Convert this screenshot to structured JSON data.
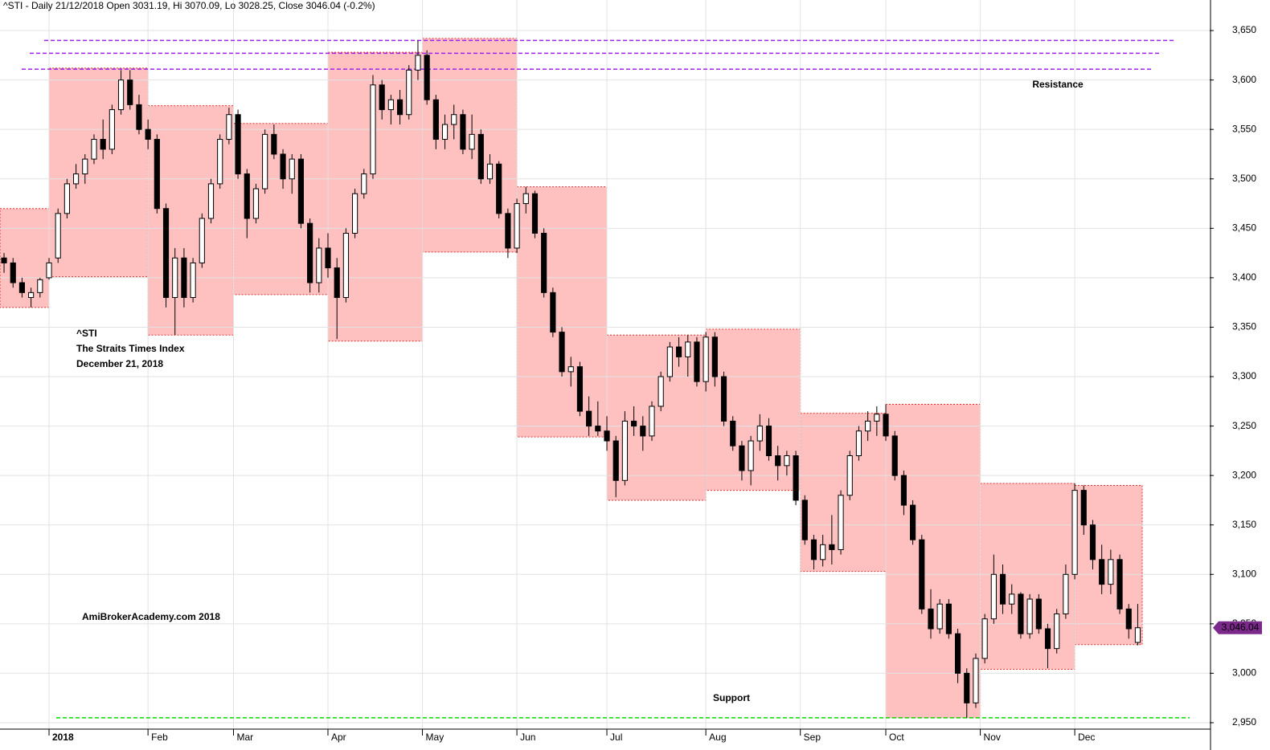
{
  "chart_data": {
    "type": "candlestick",
    "title": "^STI - Daily 21/12/2018 Open 3031.19, Hi 3070.09, Lo 3028.25, Close 3046.04 (-0.2%)",
    "annotations": [
      "Resistance",
      "Support",
      "^STI",
      "The Straits Times Index",
      "December 21, 2018",
      "AmiBrokerAcademy.com  2018"
    ],
    "annotation_color": "#e8403c",
    "up_color": "#ffffff",
    "down_color": "#000000",
    "open": [
      3420,
      3415,
      3395,
      3380,
      3385,
      3400,
      3420,
      3465,
      3495,
      3505,
      3520,
      3540,
      3530,
      3570,
      3600,
      3575,
      3550,
      3540,
      3470,
      3380,
      3420,
      3380,
      3415,
      3460,
      3495,
      3540,
      3565,
      3505,
      3460,
      3490,
      3545,
      3525,
      3500,
      3520,
      3455,
      3395,
      3430,
      3410,
      3380,
      3445,
      3485,
      3505,
      3595,
      3570,
      3580,
      3565,
      3610,
      3625,
      3580,
      3540,
      3555,
      3565,
      3530,
      3545,
      3500,
      3515,
      3465,
      3430,
      3475,
      3485,
      3445,
      3385,
      3345,
      3305,
      3310,
      3265,
      3250,
      3245,
      3235,
      3195,
      3255,
      3250,
      3240,
      3270,
      3300,
      3330,
      3320,
      3335,
      3295,
      3340,
      3300,
      3255,
      3230,
      3205,
      3235,
      3250,
      3220,
      3210,
      3220,
      3175,
      3135,
      3115,
      3130,
      3125,
      3180,
      3220,
      3245,
      3255,
      3262,
      3240,
      3200,
      3170,
      3135,
      3065,
      3045,
      3070,
      3040,
      3000,
      2970,
      3015,
      3055,
      3100,
      3070,
      3080,
      3040,
      3075,
      3045,
      3025,
      3060,
      3100,
      3185,
      3150,
      3115,
      3090,
      3115,
      3065,
      3031.19
    ],
    "high": [
      3425,
      3420,
      3400,
      3390,
      3400,
      3420,
      3470,
      3500,
      3515,
      3525,
      3545,
      3560,
      3575,
      3610,
      3610,
      3585,
      3560,
      3545,
      3475,
      3430,
      3430,
      3420,
      3465,
      3500,
      3545,
      3572,
      3570,
      3510,
      3495,
      3550,
      3555,
      3530,
      3525,
      3525,
      3460,
      3440,
      3445,
      3420,
      3450,
      3490,
      3510,
      3605,
      3600,
      3585,
      3590,
      3615,
      3640,
      3630,
      3585,
      3565,
      3575,
      3570,
      3565,
      3550,
      3525,
      3518,
      3470,
      3480,
      3492,
      3488,
      3450,
      3390,
      3350,
      3320,
      3315,
      3280,
      3275,
      3260,
      3240,
      3265,
      3270,
      3260,
      3275,
      3305,
      3335,
      3340,
      3342,
      3340,
      3345,
      3345,
      3305,
      3260,
      3235,
      3240,
      3262,
      3258,
      3230,
      3225,
      3225,
      3180,
      3140,
      3140,
      3160,
      3185,
      3225,
      3250,
      3265,
      3270,
      3272,
      3245,
      3205,
      3175,
      3140,
      3085,
      3075,
      3075,
      3045,
      3005,
      3020,
      3060,
      3120,
      3110,
      3090,
      3082,
      3080,
      3080,
      3050,
      3065,
      3110,
      3192,
      3190,
      3155,
      3130,
      3125,
      3120,
      3070,
      3070.09
    ],
    "low": [
      3405,
      3390,
      3380,
      3370,
      3380,
      3398,
      3415,
      3460,
      3490,
      3495,
      3515,
      3520,
      3525,
      3565,
      3570,
      3545,
      3530,
      3465,
      3370,
      3342,
      3370,
      3375,
      3410,
      3455,
      3490,
      3535,
      3500,
      3440,
      3455,
      3485,
      3520,
      3490,
      3485,
      3450,
      3385,
      3385,
      3400,
      3338,
      3375,
      3440,
      3480,
      3500,
      3560,
      3555,
      3555,
      3560,
      3600,
      3575,
      3530,
      3530,
      3540,
      3525,
      3520,
      3495,
      3495,
      3460,
      3420,
      3425,
      3465,
      3440,
      3380,
      3340,
      3300,
      3290,
      3260,
      3240,
      3240,
      3225,
      3178,
      3190,
      3240,
      3225,
      3235,
      3265,
      3295,
      3310,
      3300,
      3290,
      3285,
      3290,
      3250,
      3225,
      3195,
      3190,
      3225,
      3215,
      3195,
      3200,
      3170,
      3130,
      3105,
      3108,
      3110,
      3120,
      3175,
      3215,
      3235,
      3240,
      3235,
      3195,
      3160,
      3130,
      3060,
      3035,
      3040,
      3035,
      2990,
      2955,
      2965,
      3010,
      3050,
      3060,
      3060,
      3035,
      3035,
      3040,
      3005,
      3020,
      3055,
      3095,
      3140,
      3105,
      3080,
      3080,
      3060,
      3035,
      3028.25
    ],
    "close": [
      3415,
      3395,
      3385,
      3385,
      3398,
      3415,
      3465,
      3495,
      3505,
      3520,
      3540,
      3530,
      3570,
      3600,
      3575,
      3550,
      3540,
      3470,
      3380,
      3420,
      3380,
      3415,
      3460,
      3495,
      3540,
      3565,
      3505,
      3460,
      3490,
      3545,
      3525,
      3500,
      3520,
      3455,
      3395,
      3430,
      3410,
      3380,
      3445,
      3485,
      3505,
      3595,
      3570,
      3580,
      3565,
      3610,
      3625,
      3580,
      3540,
      3555,
      3565,
      3530,
      3545,
      3500,
      3515,
      3465,
      3430,
      3475,
      3485,
      3445,
      3385,
      3345,
      3305,
      3310,
      3265,
      3250,
      3245,
      3235,
      3195,
      3255,
      3250,
      3240,
      3270,
      3300,
      3330,
      3320,
      3335,
      3295,
      3340,
      3300,
      3255,
      3230,
      3205,
      3235,
      3250,
      3220,
      3210,
      3220,
      3175,
      3135,
      3115,
      3130,
      3125,
      3180,
      3220,
      3245,
      3255,
      3262,
      3240,
      3200,
      3170,
      3135,
      3065,
      3045,
      3070,
      3040,
      3000,
      2970,
      3015,
      3055,
      3100,
      3070,
      3080,
      3040,
      3075,
      3045,
      3025,
      3060,
      3100,
      3185,
      3150,
      3115,
      3090,
      3115,
      3065,
      3045,
      3046.04
    ],
    "last_value": 3046.04,
    "last_label": "3,046.04",
    "last_color": "#7b2a8c",
    "month_boxes": {
      "high": [
        3470,
        3612,
        3574,
        3556,
        3628,
        3642,
        3492,
        3342,
        3348,
        3263,
        3272,
        3192,
        3190
      ],
      "low": [
        3370,
        3401,
        3342,
        3383,
        3336,
        3426,
        3239,
        3175,
        3185,
        3103,
        2955,
        3004,
        3029
      ],
      "color": "#ffc0c0",
      "border": "#e03030"
    },
    "resistance": [
      3640,
      3627,
      3611
    ],
    "resistance_color": "#a020f0",
    "support": [
      2955
    ],
    "support_color": "#00dd00",
    "xlim": [
      -0.45,
      134
    ],
    "xticks": [
      {
        "value": 5,
        "label": "2018"
      },
      {
        "value": 16,
        "label": "Feb"
      },
      {
        "value": 25.5,
        "label": "Mar"
      },
      {
        "value": 36,
        "label": "Apr"
      },
      {
        "value": 46.5,
        "label": "May"
      },
      {
        "value": 57,
        "label": "Jun"
      },
      {
        "value": 67,
        "label": "Jul"
      },
      {
        "value": 78,
        "label": "Aug"
      },
      {
        "value": 88.5,
        "label": "Sep"
      },
      {
        "value": 98,
        "label": "Oct"
      },
      {
        "value": 108.5,
        "label": "Nov"
      },
      {
        "value": 119,
        "label": "Dec"
      }
    ],
    "ylim": [
      2943.5,
      3680.9
    ],
    "yticks": [
      {
        "value": 2950,
        "label": "2,950"
      },
      {
        "value": 3000,
        "label": "3,000"
      },
      {
        "value": 3050,
        "label": "3,050"
      },
      {
        "value": 3100,
        "label": "3,100"
      },
      {
        "value": 3150,
        "label": "3,150"
      },
      {
        "value": 3200,
        "label": "3,200"
      },
      {
        "value": 3250,
        "label": "3,250"
      },
      {
        "value": 3300,
        "label": "3,300"
      },
      {
        "value": 3350,
        "label": "3,350"
      },
      {
        "value": 3400,
        "label": "3,400"
      },
      {
        "value": 3450,
        "label": "3,450"
      },
      {
        "value": 3500,
        "label": "3,500"
      },
      {
        "value": 3550,
        "label": "3,550"
      },
      {
        "value": 3600,
        "label": "3,600"
      },
      {
        "value": 3650,
        "label": "3,650"
      }
    ],
    "grid": true
  }
}
